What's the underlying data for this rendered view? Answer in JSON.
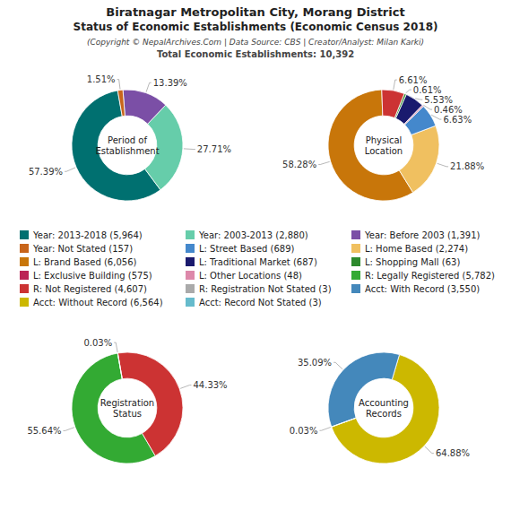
{
  "title": [
    "Biratnagar Metropolitan City, Morang District",
    "Status of Economic Establishments (Economic Census 2018)"
  ],
  "subtitle": [
    "(Copyright © NepalArchives.Com | Data Source: CBS | Creator/Analyst: Milan Karki)",
    "Total Economic Establishments: 10,392"
  ],
  "chart_data": [
    {
      "type": "pie",
      "title": "Period of\nEstablishment",
      "values": [
        57.39,
        27.71,
        13.39,
        1.51
      ],
      "value_labels": [
        "57.39%",
        "27.71%",
        "13.39%",
        "1.51%"
      ],
      "colors": [
        "#007070",
        "#66cdaa",
        "#7b4fa6",
        "#c8651b"
      ],
      "data_labels": true
    },
    {
      "type": "pie",
      "title": "Physical\nLocation",
      "values": [
        58.28,
        21.88,
        6.63,
        0.46,
        5.53,
        0.61,
        6.61
      ],
      "value_labels": [
        "58.28%",
        "21.88%",
        "6.63%",
        "0.46%",
        "5.53%",
        "0.61%",
        "6.61%"
      ],
      "colors": [
        "#c8760a",
        "#f0c060",
        "#4488cc",
        "#dd88aa",
        "#1a1a6e",
        "#2d8a2d",
        "#cc3333"
      ],
      "data_labels": true
    },
    {
      "type": "pie",
      "title": "Registration\nStatus",
      "values": [
        55.64,
        44.33,
        0.03
      ],
      "value_labels": [
        "55.64%",
        "44.33%",
        "0.03%"
      ],
      "colors": [
        "#33aa33",
        "#cc3333",
        "#ddcc00"
      ],
      "data_labels": true
    },
    {
      "type": "pie",
      "title": "Accounting\nRecords",
      "values": [
        64.88,
        35.09,
        0.03
      ],
      "value_labels": [
        "64.88%",
        "35.09%",
        "0.03%"
      ],
      "colors": [
        "#ccb800",
        "#4488bb",
        "#33aa33"
      ],
      "data_labels": true
    },
    {
      "type": "legend",
      "series": [
        {
          "name": "Year: 2013-2018 (5,964)",
          "color": "#007070"
        },
        {
          "name": "Year: 2003-2013 (2,880)",
          "color": "#66cdaa"
        },
        {
          "name": "Year: Before 2003 (1,391)",
          "color": "#7b4fa6"
        },
        {
          "name": "Year: Not Stated (157)",
          "color": "#c8651b"
        },
        {
          "name": "L: Street Based (689)",
          "color": "#4488cc"
        },
        {
          "name": "L: Home Based (2,274)",
          "color": "#f0c060"
        },
        {
          "name": "L: Brand Based (6,056)",
          "color": "#c8760a"
        },
        {
          "name": "L: Traditional Market (687)",
          "color": "#1a1a6e"
        },
        {
          "name": "L: Shopping Mall (63)",
          "color": "#2d8a2d"
        },
        {
          "name": "L: Exclusive Building (575)",
          "color": "#bb2255"
        },
        {
          "name": "L: Other Locations (48)",
          "color": "#dd88aa"
        },
        {
          "name": "R: Legally Registered (5,782)",
          "color": "#33aa33"
        },
        {
          "name": "R: Not Registered (4,607)",
          "color": "#cc3333"
        },
        {
          "name": "R: Registration Not Stated (3)",
          "color": "#aaaaaa"
        },
        {
          "name": "Acct: With Record (3,550)",
          "color": "#4488bb"
        },
        {
          "name": "Acct: Without Record (6,564)",
          "color": "#ccb800"
        },
        {
          "name": "Acct: Record Not Stated (3)",
          "color": "#66bbcc"
        }
      ]
    }
  ]
}
